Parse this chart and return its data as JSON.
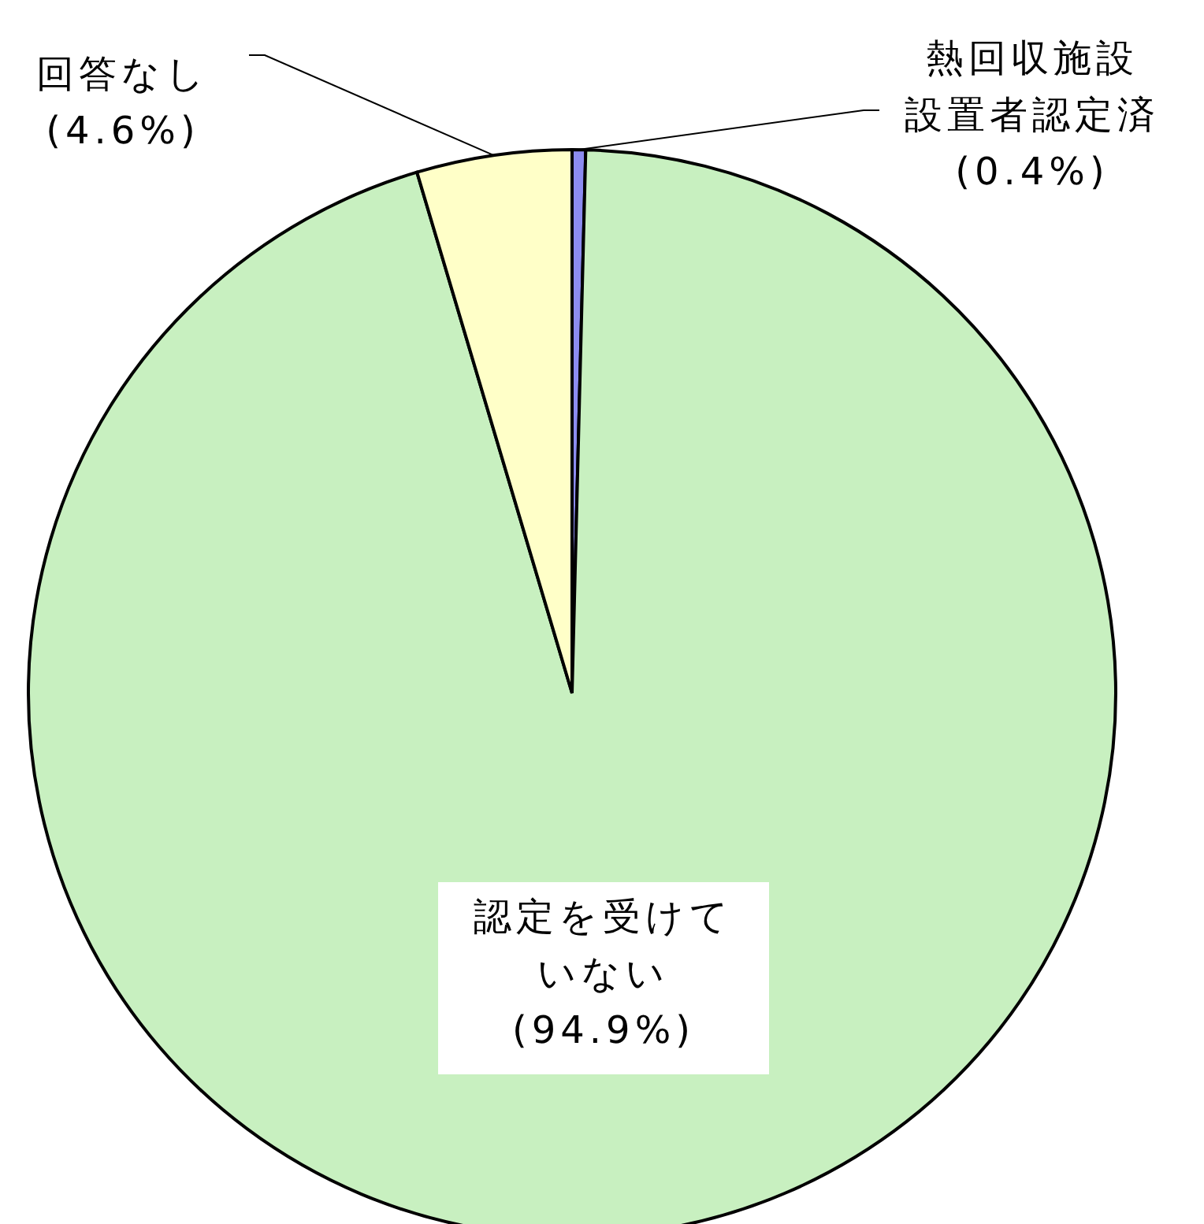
{
  "chart_data": {
    "type": "pie",
    "categories": [
      "熱回収施設設置者認定済",
      "認定を受けていない",
      "回答なし"
    ],
    "values": [
      0.4,
      94.9,
      4.6
    ],
    "value_labels": [
      "(0.4%)",
      "(94.9%)",
      "(4.6%)"
    ],
    "colors": [
      "#8c8cf0",
      "#c8f0c0",
      "#ffffc8"
    ]
  }
}
